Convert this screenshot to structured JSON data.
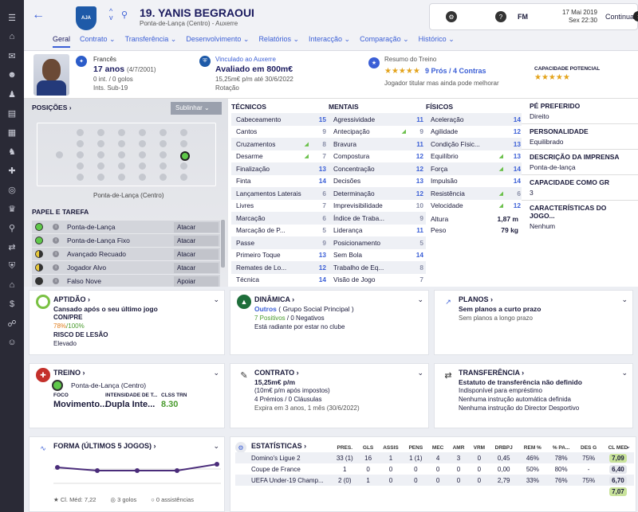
{
  "header": {
    "title": "19. YANIS BEGRAOUI",
    "subtitle": "Ponta-de-Lança (Centro) - Auxerre",
    "crest": "AJA",
    "date": "17 Mai 2019",
    "time": "Sex 22:30",
    "fm": "FM",
    "continue": "Continuar"
  },
  "tabs": [
    "Geral",
    "Contrato",
    "Transferência",
    "Desenvolvimento",
    "Relatórios",
    "Interacção",
    "Comparação",
    "Histórico"
  ],
  "info": {
    "nationality": "Francês",
    "age": "17 anos",
    "dob": "(4/7/2001)",
    "intl": "0 int. / 0 golos",
    "ints": "Ints. Sub-19",
    "club": "Vinculado ao Auxerre",
    "value": "Avaliado em 800m€",
    "contract": "15,25m€ p/m até 30/6/2022",
    "role": "Rotação",
    "training_title": "Resumo do Treino",
    "training_stars": "★★★★★",
    "training_pros": "9 Prós / 4 Contras",
    "training_note": "Jogador titular mas ainda pode melhorar",
    "pot_title": "CAPACIDADE POTENCIAL",
    "pot_stars": "★★★★★"
  },
  "pitch": {
    "title": "POSIÇÕES",
    "btn": "Sublinhar",
    "pos_label": "Ponta-de-Lança (Centro)",
    "roles_title": "PAPEL E TAREFA",
    "roles": [
      {
        "n": "Ponta-de-Lança",
        "d": "Atacar"
      },
      {
        "n": "Ponta-de-Lança Fixo",
        "d": "Atacar"
      },
      {
        "n": "Avançado Recuado",
        "d": "Atacar"
      },
      {
        "n": "Jogador Alvo",
        "d": "Atacar"
      },
      {
        "n": "Falso Nove",
        "d": "Apoiar"
      }
    ]
  },
  "attrs": {
    "tec_title": "TÉCNICOS",
    "men_title": "MENTAIS",
    "fis_title": "FÍSICOS",
    "tec": [
      [
        "Cabeceamento",
        "15"
      ],
      [
        "Cantos",
        "9"
      ],
      [
        "Cruzamentos",
        "8"
      ],
      [
        "Desarme",
        "7"
      ],
      [
        "Finalização",
        "13"
      ],
      [
        "Finta",
        "14"
      ],
      [
        "Lançamentos Laterais",
        "6"
      ],
      [
        "Livres",
        "7"
      ],
      [
        "Marcação",
        "6"
      ],
      [
        "Marcação de P...",
        "5"
      ],
      [
        "Passe",
        "9"
      ],
      [
        "Primeiro Toque",
        "13"
      ],
      [
        "Remates de Lo...",
        "12"
      ],
      [
        "Técnica",
        "14"
      ]
    ],
    "men": [
      [
        "Agressividade",
        "11"
      ],
      [
        "Antecipação",
        "9"
      ],
      [
        "Bravura",
        "11"
      ],
      [
        "Compostura",
        "12"
      ],
      [
        "Concentração",
        "12"
      ],
      [
        "Decisões",
        "13"
      ],
      [
        "Determinação",
        "12"
      ],
      [
        "Imprevisibilidade",
        "10"
      ],
      [
        "Índice de Traba...",
        "9"
      ],
      [
        "Liderança",
        "11"
      ],
      [
        "Posicionamento",
        "5"
      ],
      [
        "Sem Bola",
        "14"
      ],
      [
        "Trabalho de Eq...",
        "8"
      ],
      [
        "Visão de Jogo",
        "7"
      ]
    ],
    "fis": [
      [
        "Aceleração",
        "14"
      ],
      [
        "Agilidade",
        "12"
      ],
      [
        "Condição Físic...",
        "13"
      ],
      [
        "Equilíbrio",
        "13"
      ],
      [
        "Força",
        "14"
      ],
      [
        "Impulsão",
        "14"
      ],
      [
        "Resistência",
        "6"
      ],
      [
        "Velocidade",
        "12"
      ]
    ],
    "height_l": "Altura",
    "height": "1,87 m",
    "weight_l": "Peso",
    "weight": "79 kg"
  },
  "right": [
    [
      "PÉ PREFERIDO",
      "Direito"
    ],
    [
      "PERSONALIDADE",
      "Equilibrado"
    ],
    [
      "DESCRIÇÃO DA IMPRENSA",
      "Ponta-de-lança"
    ],
    [
      "CAPACIDADE COMO GR",
      "3"
    ],
    [
      "CARACTERÍSTICAS DO JOGO...",
      "Nenhum"
    ]
  ],
  "aptidao": {
    "title": "APTIDÃO",
    "l1": "Cansado após o seu último jogo",
    "l2": "CON/PRE",
    "l3a": "78%",
    "l3b": "/100%",
    "l4": "RISCO DE LESÃO",
    "l5": "Elevado"
  },
  "dinamica": {
    "title": "DINÂMICA",
    "l1a": "Outros",
    "l1b": "( Grupo Social Principal )",
    "l2a": "7 Positivos",
    "l2b": "/ 0 Negativos",
    "l3": "Está radiante por estar no clube"
  },
  "planos": {
    "title": "PLANOS",
    "l1": "Sem planos a curto prazo",
    "l2": "Sem planos a longo prazo"
  },
  "treino": {
    "title": "TREINO",
    "pos": "Ponta-de-Lança (Centro)",
    "h1": "FOCO",
    "h2": "INTENSIDADE DE T...",
    "h3": "CLSS TRN",
    "v1": "Movimento...",
    "v2": "Dupla Inte...",
    "v3": "8.30"
  },
  "contrato": {
    "title": "CONTRATO",
    "l1": "15,25m€ p/m",
    "l2": "(10m€ p/m após impostos)",
    "l3": "4 Prémios / 0 Cláusulas",
    "l4": "Expira em 3 anos, 1 mês (30/6/2022)"
  },
  "transferencia": {
    "title": "TRANSFERÊNCIA",
    "l1": "Estatuto de transferência não definido",
    "l2": "Indisponível para empréstimo",
    "l3": "Nenhuma instrução automática definida",
    "l4": "Nenhuma instrução do Director Desportivo"
  },
  "forma": {
    "title": "FORMA (ÚLTIMOS 5 JOGOS)",
    "f1": "Cl. Méd: 7,22",
    "f2": "3 golos",
    "f3": "0 assistências"
  },
  "stats": {
    "title": "ESTATÍSTICAS",
    "headers": [
      "PRES.",
      "GLS",
      "ASSIS",
      "PENS",
      "MEC",
      "AMR",
      "VRM",
      "DRBPJ",
      "REM %",
      "% PA...",
      "DES G",
      "CL MED"
    ],
    "rows": [
      {
        "c": "Domino's Ligue 2",
        "v": [
          "33 (1)",
          "16",
          "1",
          "1 (1)",
          "4",
          "3",
          "0",
          "0,45",
          "46%",
          "78%",
          "75%",
          "7,09"
        ]
      },
      {
        "c": "Coupe de France",
        "v": [
          "1",
          "0",
          "0",
          "0",
          "0",
          "0",
          "0",
          "0,00",
          "50%",
          "80%",
          "-",
          "6,40"
        ]
      },
      {
        "c": "UEFA Under-19 Champ...",
        "v": [
          "2 (0)",
          "1",
          "0",
          "0",
          "0",
          "0",
          "0",
          "2,79",
          "33%",
          "76%",
          "75%",
          "6,70"
        ]
      },
      {
        "c": "",
        "v": [
          "",
          "",
          "",
          "",
          "",
          "",
          "",
          "",
          "",
          "",
          "",
          "7,07"
        ]
      }
    ]
  },
  "colors": {
    "accent": "#3b5fd6",
    "green": "#6bc04b"
  }
}
